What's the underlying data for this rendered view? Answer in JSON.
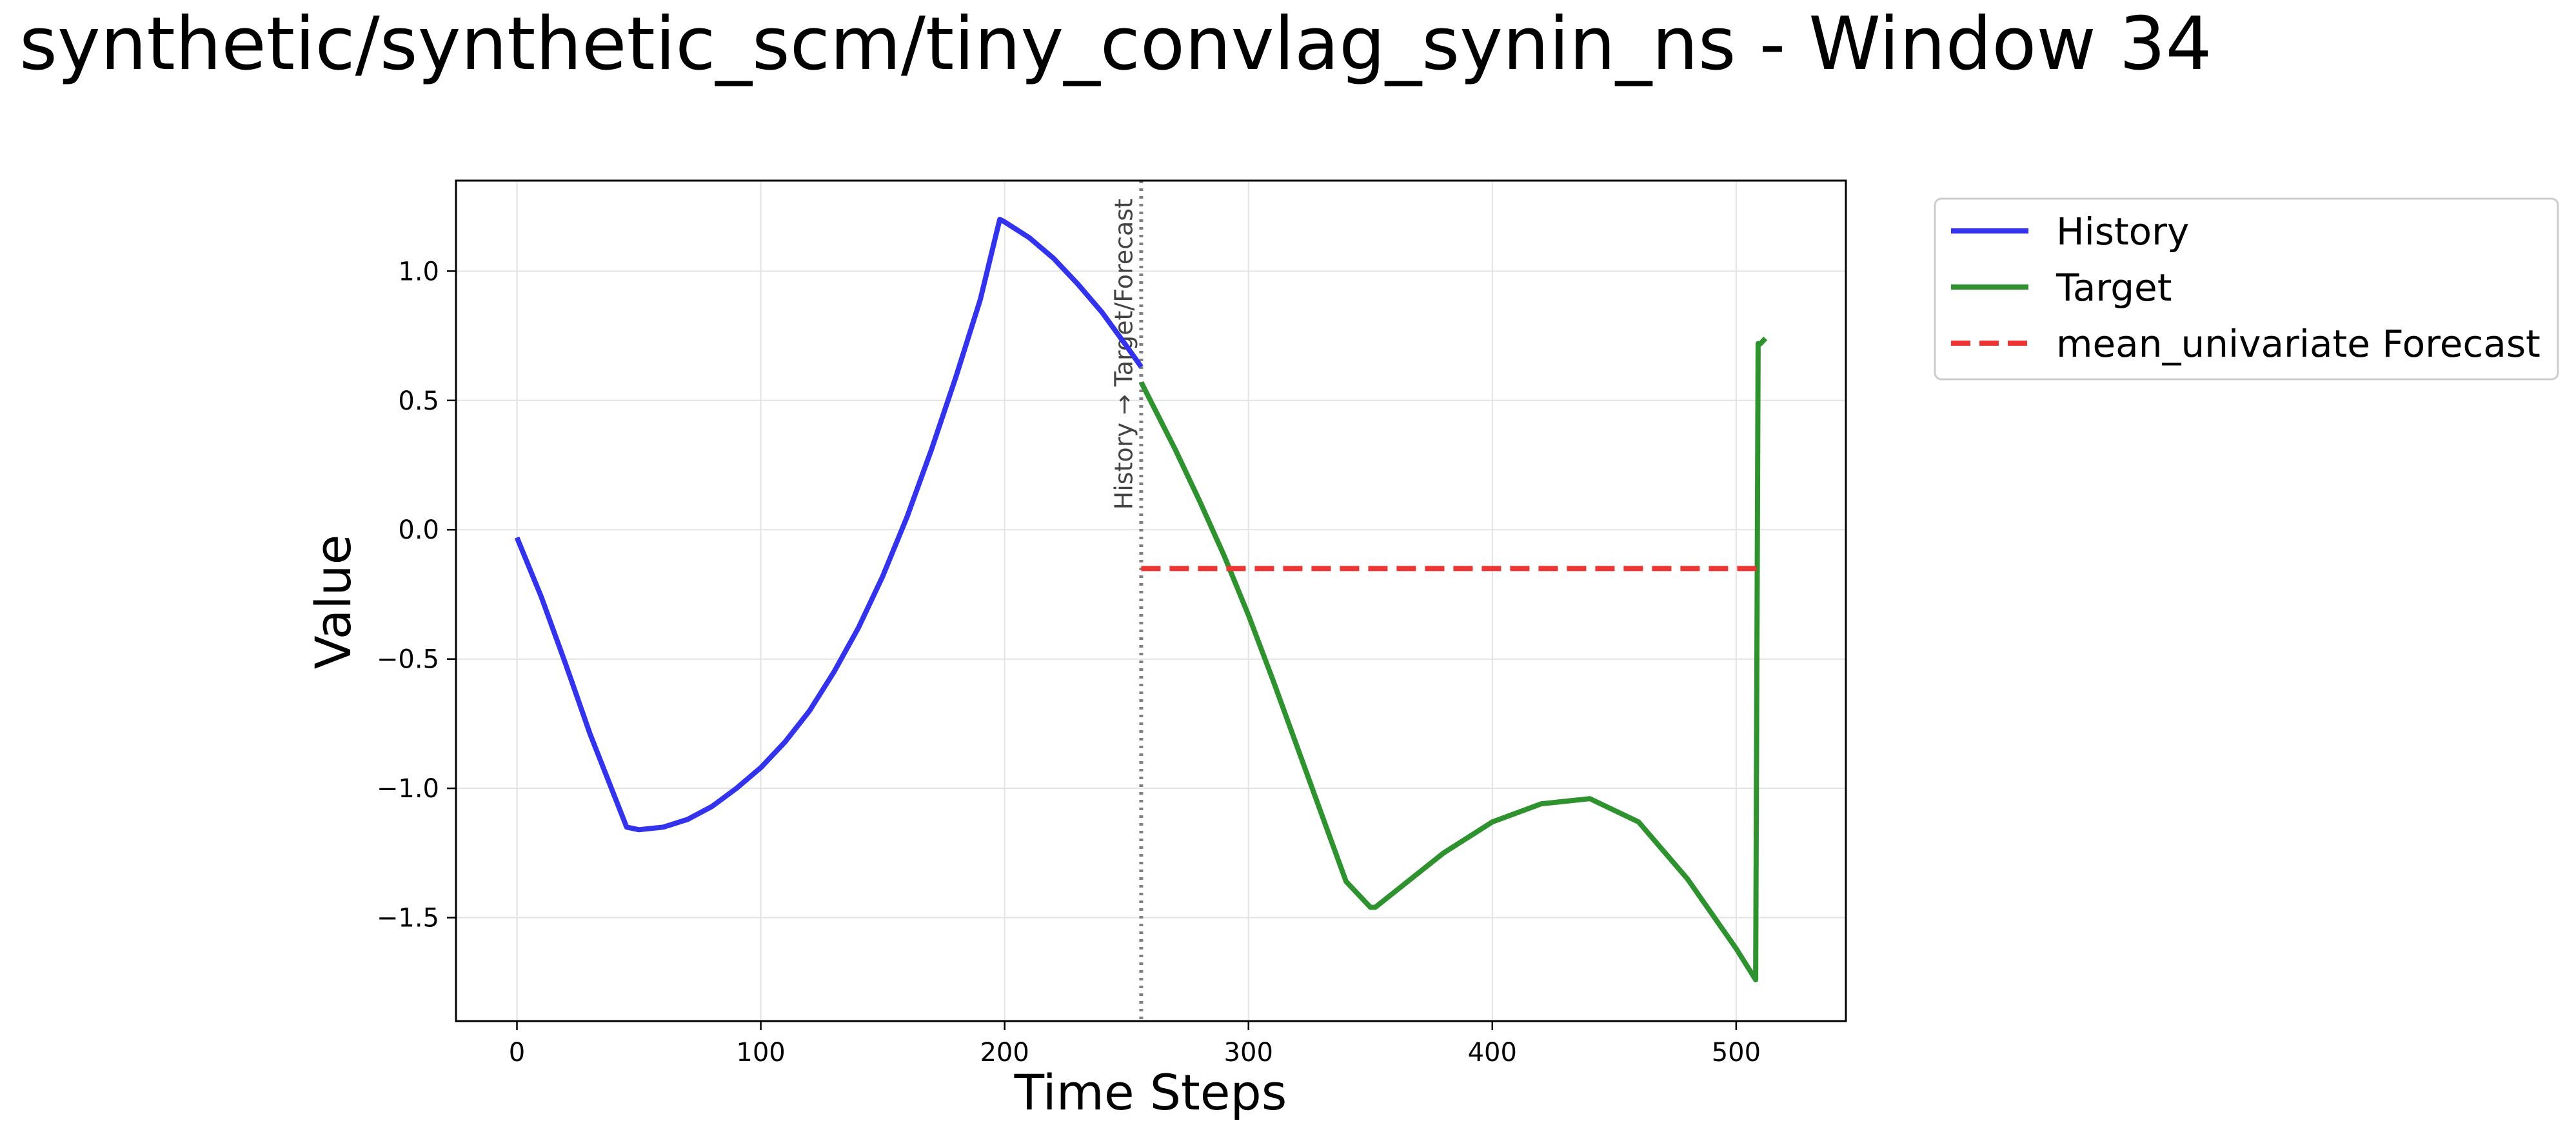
{
  "chart_data": {
    "type": "line",
    "title": "synthetic/synthetic_scm/tiny_convlag_synin_ns - Window 34",
    "xlabel": "Time Steps",
    "ylabel": "Value",
    "xlim": [
      -25,
      545
    ],
    "ylim": [
      -1.9,
      1.35
    ],
    "x_ticks": [
      0,
      100,
      200,
      300,
      400,
      500
    ],
    "x_tick_labels": [
      "0",
      "100",
      "200",
      "300",
      "400",
      "500"
    ],
    "y_ticks": [
      1.0,
      0.5,
      0.0,
      -0.5,
      -1.0,
      -1.5
    ],
    "y_tick_labels": [
      "1.0",
      "0.5",
      "0.0",
      "−0.5",
      "−1.0",
      "−1.5"
    ],
    "grid": true,
    "legend_position": "outside-top-right",
    "split": {
      "x": 256,
      "label": "History → Target/Forecast",
      "color": "#808080"
    },
    "series": [
      {
        "name": "History",
        "color": "#3333ee",
        "style": "solid",
        "x": [
          0,
          10,
          20,
          30,
          45,
          50,
          60,
          70,
          80,
          90,
          100,
          110,
          120,
          130,
          140,
          150,
          160,
          170,
          180,
          190,
          198,
          200,
          210,
          220,
          230,
          240,
          250,
          256
        ],
        "y": [
          -0.03,
          -0.26,
          -0.52,
          -0.79,
          -1.15,
          -1.16,
          -1.15,
          -1.12,
          -1.07,
          -1.0,
          -0.92,
          -0.82,
          -0.7,
          -0.55,
          -0.38,
          -0.18,
          0.05,
          0.31,
          0.59,
          0.89,
          1.2,
          1.19,
          1.13,
          1.05,
          0.95,
          0.84,
          0.71,
          0.63
        ]
      },
      {
        "name": "Target",
        "color": "#2e932e",
        "style": "solid",
        "x": [
          256,
          270,
          280,
          290,
          300,
          310,
          320,
          330,
          340,
          350,
          352,
          360,
          380,
          400,
          420,
          440,
          460,
          480,
          500,
          508,
          509,
          510,
          512
        ],
        "y": [
          0.57,
          0.31,
          0.11,
          -0.1,
          -0.33,
          -0.58,
          -0.84,
          -1.1,
          -1.36,
          -1.46,
          -1.46,
          -1.4,
          -1.25,
          -1.13,
          -1.06,
          -1.04,
          -1.13,
          -1.35,
          -1.62,
          -1.74,
          0.72,
          0.72,
          0.74
        ]
      },
      {
        "name": "mean_univariate Forecast",
        "color": "#ee3333",
        "style": "dashed",
        "x": [
          256,
          512
        ],
        "y": [
          -0.15,
          -0.15
        ]
      }
    ]
  }
}
